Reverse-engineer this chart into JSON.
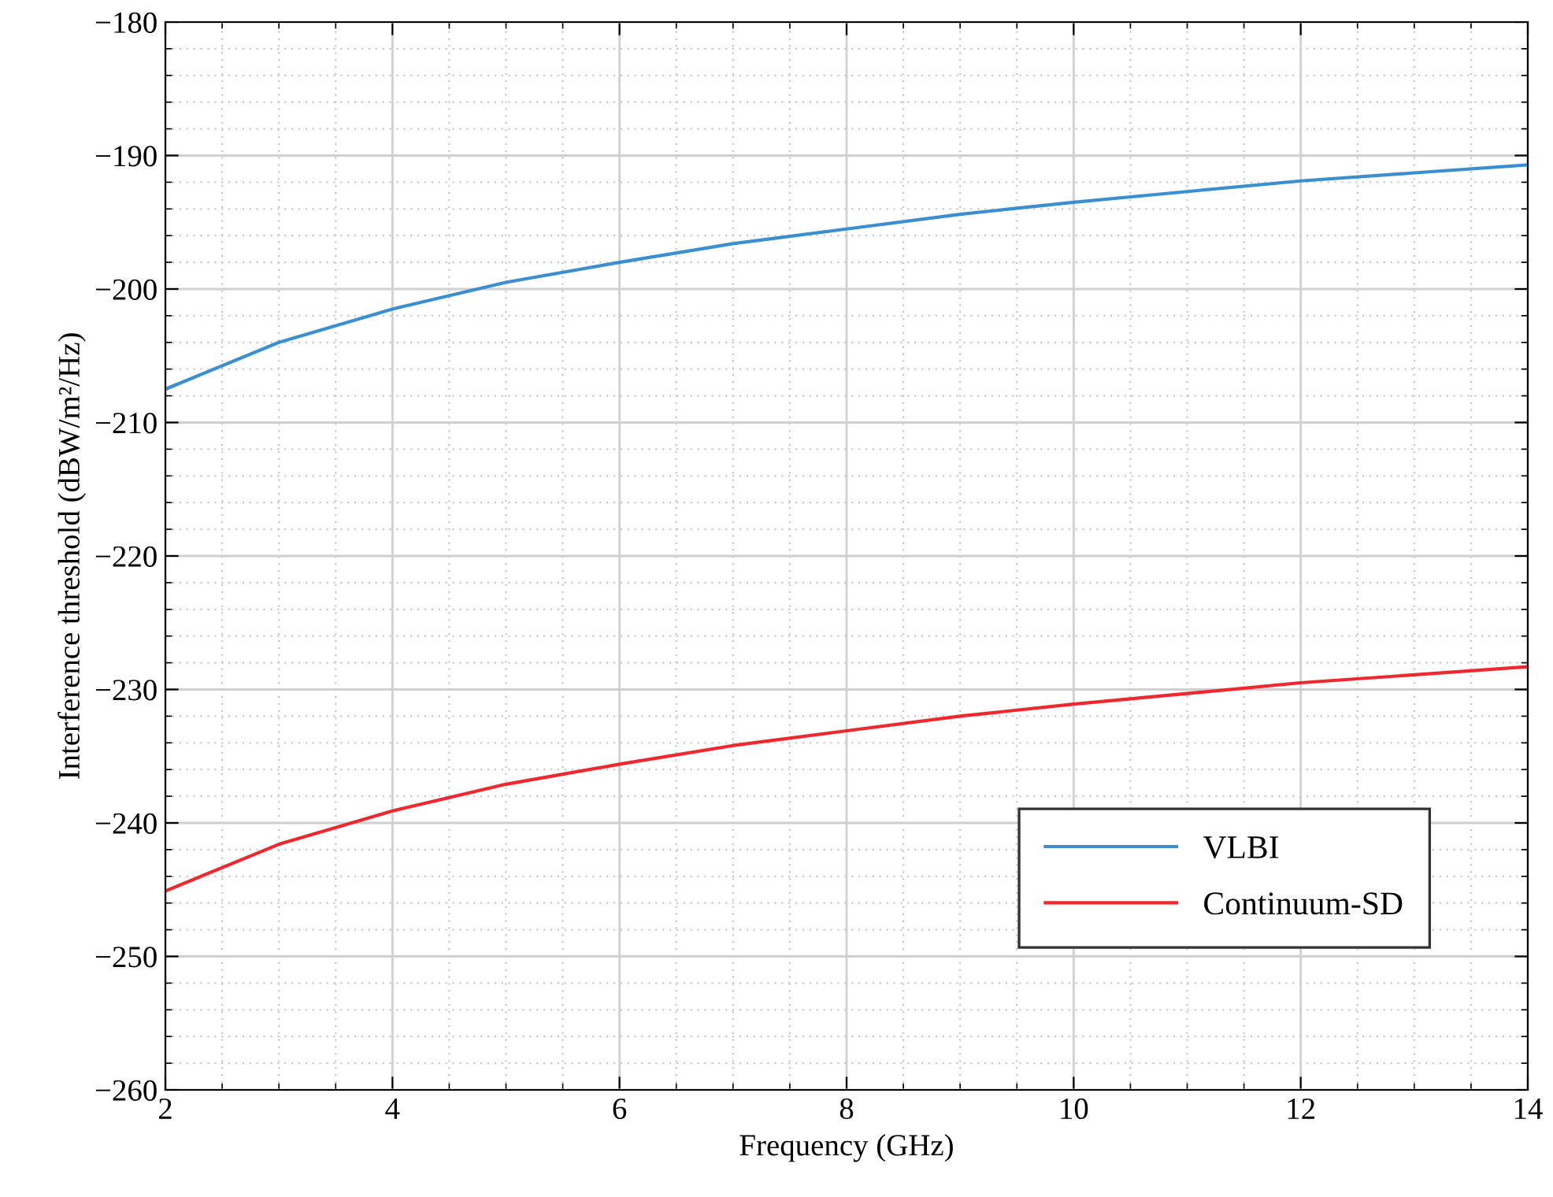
{
  "chart_data": {
    "type": "line",
    "xlabel": "Frequency (GHz)",
    "ylabel": "Interference threshold (dBW/m²/Hz)",
    "x": [
      2,
      3,
      4,
      5,
      6,
      7,
      8,
      9,
      10,
      11,
      12,
      13,
      14
    ],
    "series": [
      {
        "name": "VLBI",
        "color": "#3a8fd0",
        "values": [
          -207.5,
          -204.0,
          -201.5,
          -199.5,
          -198.0,
          -196.6,
          -195.5,
          -194.4,
          -193.5,
          -192.7,
          -191.9,
          -191.3,
          -190.7
        ]
      },
      {
        "name": "Continuum-SD",
        "color": "#f0282d",
        "values": [
          -245.1,
          -241.6,
          -239.1,
          -237.1,
          -235.6,
          -234.2,
          -233.1,
          -232.0,
          -231.1,
          -230.3,
          -229.5,
          -228.9,
          -228.3
        ]
      }
    ],
    "xlim": [
      2,
      14
    ],
    "xticks": [
      2,
      4,
      6,
      8,
      10,
      12,
      14
    ],
    "ylim": [
      -260,
      -180
    ],
    "yticks": [
      -260,
      -250,
      -240,
      -230,
      -220,
      -210,
      -200,
      -190,
      -180
    ],
    "grid": true,
    "legend": "bottom right",
    "marker": "none",
    "line_style": "solid"
  }
}
